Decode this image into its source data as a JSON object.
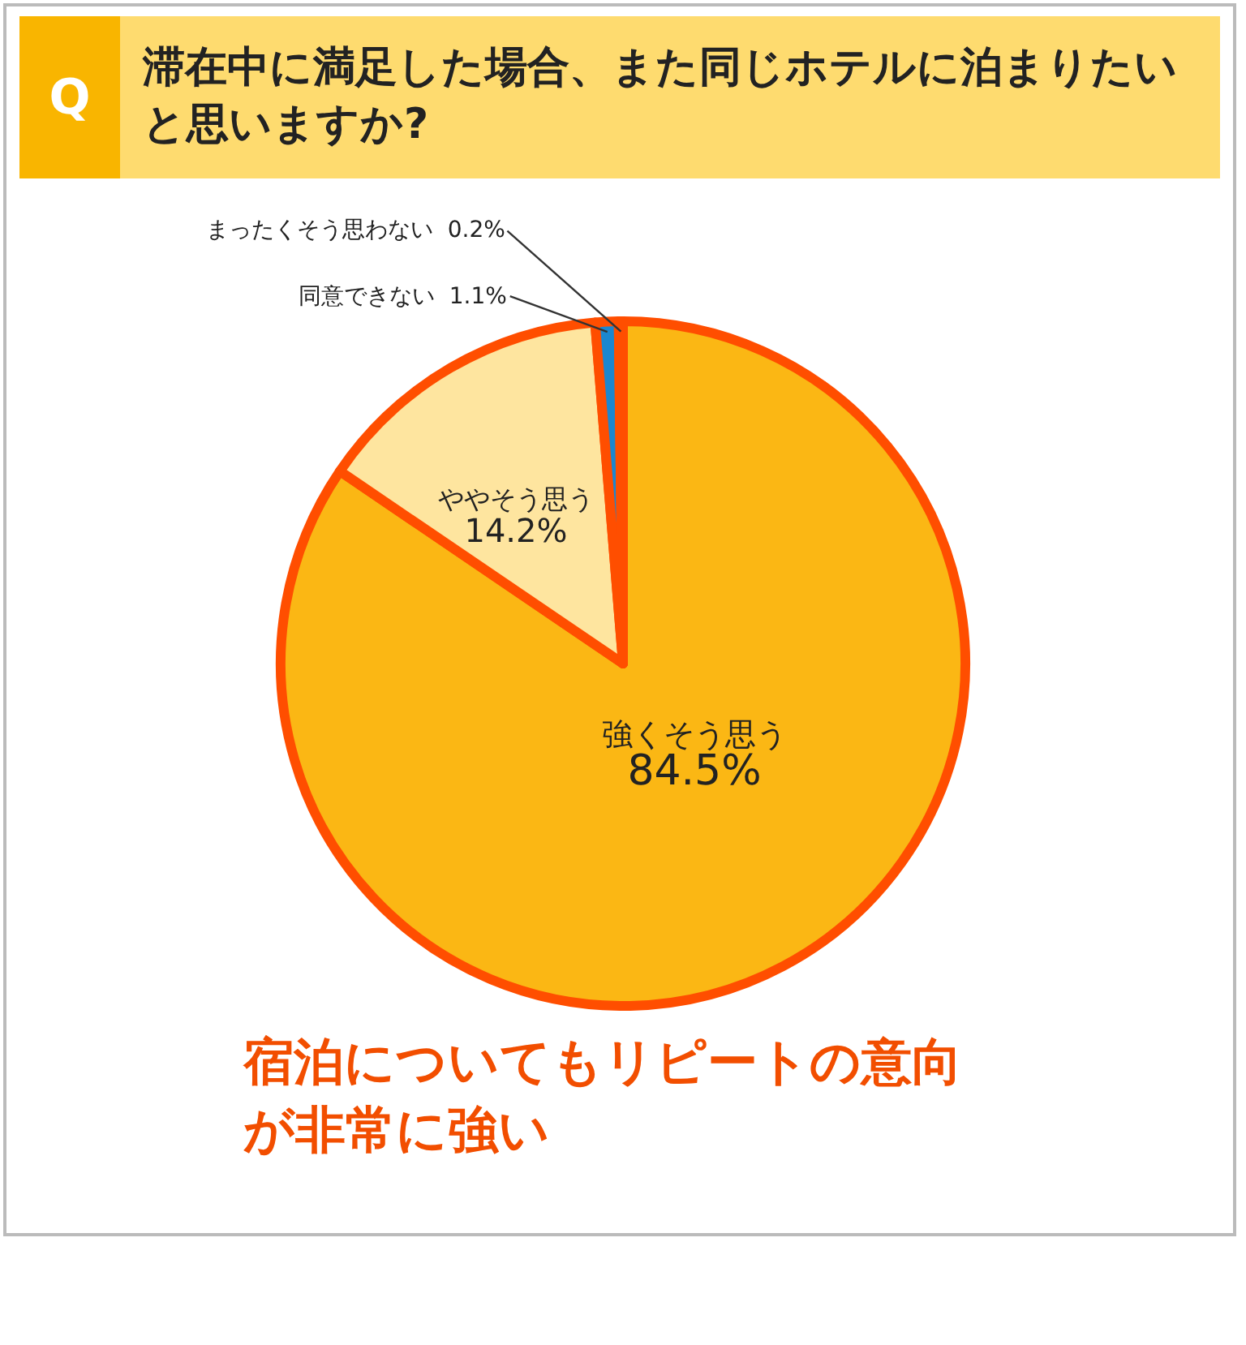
{
  "chart_data": {
    "type": "pie",
    "title": "滞在中に満足した場合、また同じホテルに泊まりたいと思いますか?",
    "categories": [
      "強くそう思う",
      "ややそう思う",
      "同意できない",
      "まったくそう思わない"
    ],
    "values": [
      84.5,
      14.2,
      1.1,
      0.2
    ],
    "colors": [
      "#fbb714",
      "#fee59f",
      "#1b87cf",
      "#e8eef3"
    ],
    "value_labels": [
      "84.5%",
      "14.2%",
      "1.1%",
      "0.2%"
    ],
    "annotations": [
      "Q",
      "宿泊についてもリピートの意向が非常に強い"
    ]
  }
}
